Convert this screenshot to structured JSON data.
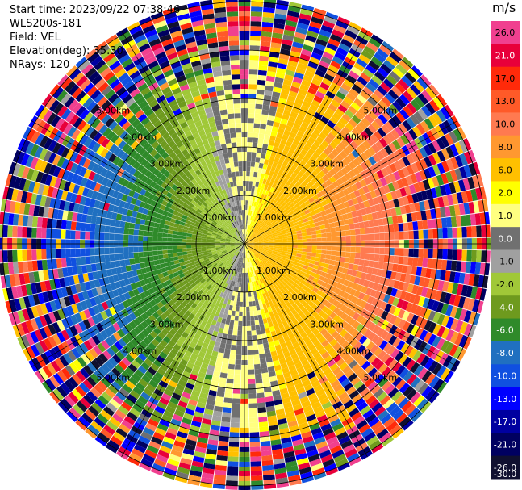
{
  "header": {
    "start_time": "Start time: 2023/09/22 07:38:46",
    "device": "WLS200s-181",
    "field": "Field: VEL",
    "elevation": "Elevation(deg): 35.30",
    "nrays": "NRays: 120"
  },
  "colorbar": {
    "unit": "m/s",
    "tick_labels": [
      "26.0",
      "21.0",
      "17.0",
      "13.0",
      "10.0",
      "8.0",
      "6.0",
      "2.0",
      "1.0",
      "0.0",
      "-1.0",
      "-2.0",
      "-4.0",
      "-6.0",
      "-8.0",
      "-10.0",
      "-13.0",
      "-17.0",
      "-21.0",
      "-26.0",
      "-30.0"
    ],
    "colors": [
      "#f0408f",
      "#e8003a",
      "#ff2a0a",
      "#ff5a28",
      "#ff7a50",
      "#ff9830",
      "#ffc000",
      "#ffff00",
      "#ffff80",
      "#707070",
      "#a0a0a0",
      "#a0c838",
      "#6e9a1e",
      "#2f8a2a",
      "#2070c0",
      "#1050e0",
      "#0000ff",
      "#0000a0",
      "#000060",
      "#101030"
    ]
  },
  "chart_data": {
    "type": "polar-ppi",
    "rays": 120,
    "range_rings_km": [
      1,
      2,
      3,
      4,
      5
    ],
    "ring_labels": [
      "1.00km",
      "2.00km",
      "3.00km",
      "4.00km",
      "5.00km"
    ],
    "velocity_range": [
      -30,
      26
    ],
    "pattern": "positive velocities (yellow/orange) to the east, negative (green/blue) to the west, noisy returns beyond ~4 km"
  }
}
